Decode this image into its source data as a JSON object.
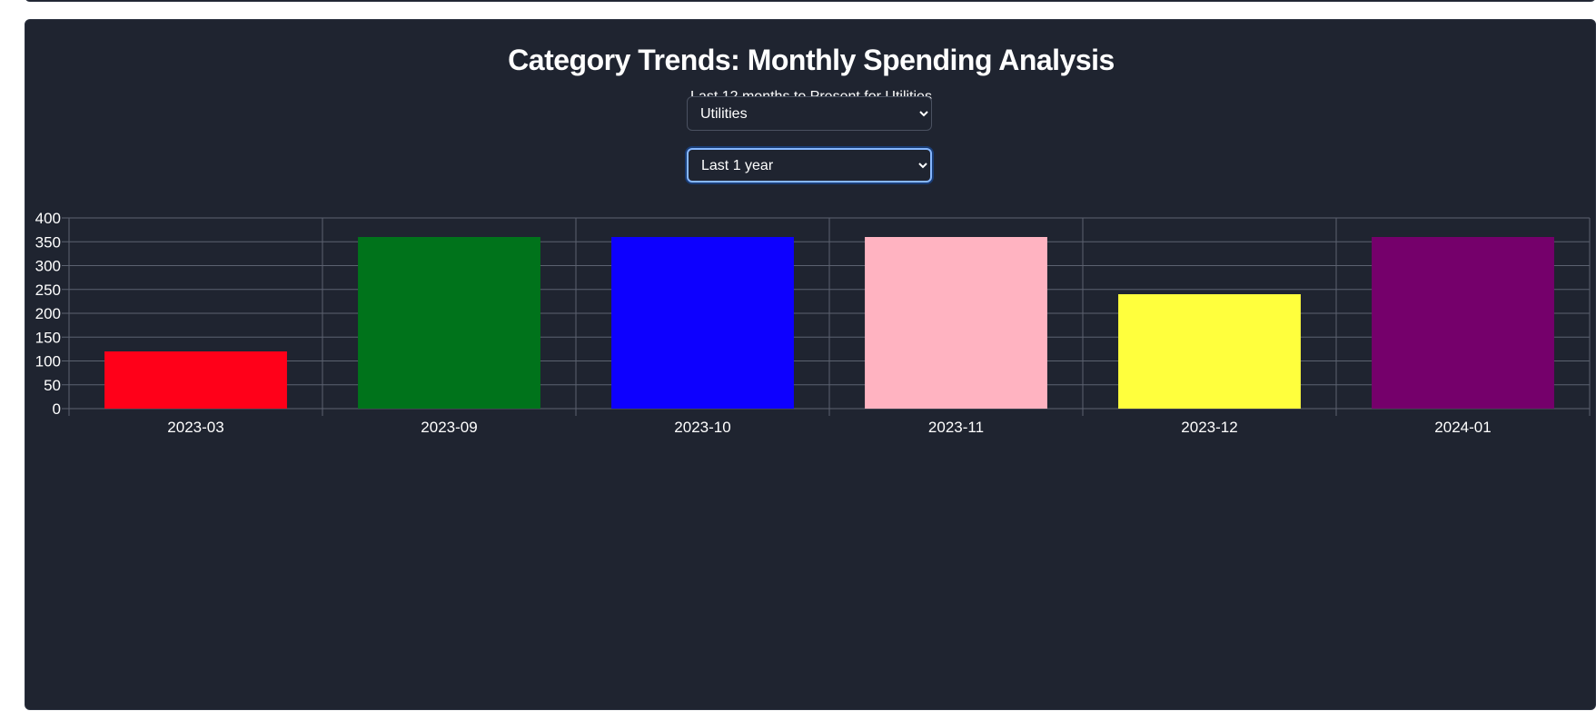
{
  "header": {
    "title": "Category Trends: Monthly Spending Analysis",
    "subtitle": "Last 12 months to Present for Utilities"
  },
  "filters": {
    "category_value": "Utilities",
    "range_value": "Last 1 year"
  },
  "colors": {
    "card_bg": "#1f2430",
    "grid": "#5c6270"
  },
  "chart_data": {
    "type": "bar",
    "categories": [
      "2023-03",
      "2023-09",
      "2023-10",
      "2023-11",
      "2023-12",
      "2024-01"
    ],
    "values": [
      120,
      360,
      360,
      360,
      240,
      360
    ],
    "bar_colors": [
      "#ff0019",
      "#00731b",
      "#0d00ff",
      "#ffb3c1",
      "#ffff3d",
      "#75006b"
    ],
    "ylim": [
      0,
      400
    ],
    "yticks": [
      0,
      50,
      100,
      150,
      200,
      250,
      300,
      350,
      400
    ],
    "grid": true,
    "legend": "none",
    "title": "",
    "xlabel": "",
    "ylabel": ""
  }
}
